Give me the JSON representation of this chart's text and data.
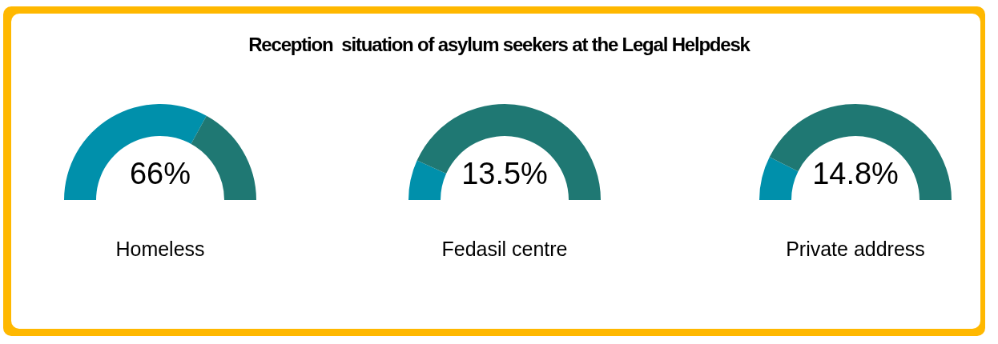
{
  "chart_data": [
    {
      "type": "donut",
      "xlabel": "Homeless",
      "categories": [
        null,
        null
      ],
      "values": [
        66,
        34
      ],
      "colors": [
        "#0090ab",
        "#1f7873"
      ],
      "annotations": [
        "66%"
      ]
    },
    {
      "type": "donut",
      "title": "Reception  situation of asylum seekers at the Legal Helpdesk",
      "xlabel": "Fedasil centre",
      "categories": [
        null,
        null
      ],
      "values": [
        13.5,
        86.5
      ],
      "colors": [
        "#0090ab",
        "#1f7873"
      ],
      "annotations": [
        "13.5%"
      ]
    },
    {
      "type": "donut",
      "xlabel": "Private address",
      "categories": [
        null,
        null
      ],
      "values": [
        14.8,
        85.2
      ],
      "colors": [
        "#0090ab",
        "#1f7873"
      ],
      "annotations": [
        "14.8%"
      ]
    }
  ]
}
